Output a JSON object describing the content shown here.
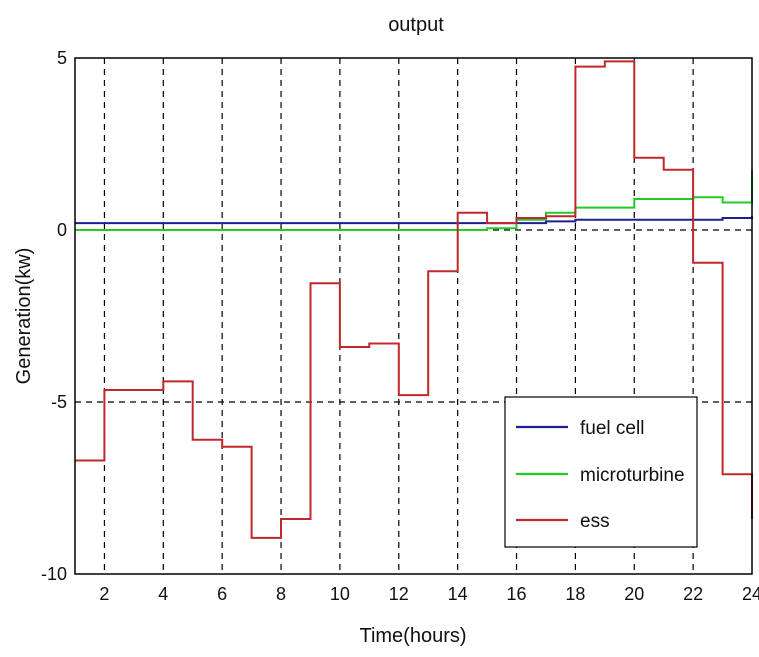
{
  "chart_data": {
    "type": "line",
    "title": "output",
    "xlabel": "Time(hours)",
    "ylabel": "Generation(kw)",
    "xlim": [
      1,
      24
    ],
    "ylim": [
      -10,
      5
    ],
    "xticks": [
      "2",
      "4",
      "6",
      "8",
      "10",
      "12",
      "14",
      "16",
      "18",
      "20",
      "22",
      "24"
    ],
    "yticks": [
      "-10",
      "-5",
      "0",
      "5"
    ],
    "grid": true,
    "legend_position": "bottom-right",
    "step": true,
    "series": [
      {
        "name": "fuel cell",
        "color": "#1f1f8f",
        "x": [
          1,
          2,
          3,
          4,
          5,
          6,
          7,
          8,
          9,
          10,
          11,
          12,
          13,
          14,
          15,
          16,
          17,
          18,
          19,
          20,
          21,
          22,
          23,
          24
        ],
        "y": [
          0.2,
          0.2,
          0.2,
          0.2,
          0.2,
          0.2,
          0.2,
          0.2,
          0.2,
          0.2,
          0.2,
          0.2,
          0.2,
          0.2,
          0.2,
          0.2,
          0.25,
          0.3,
          0.3,
          0.3,
          0.3,
          0.3,
          0.35,
          0.4
        ]
      },
      {
        "name": "microturbine",
        "color": "#22cc22",
        "x": [
          1,
          2,
          3,
          4,
          5,
          6,
          7,
          8,
          9,
          10,
          11,
          12,
          13,
          14,
          15,
          16,
          17,
          18,
          19,
          20,
          21,
          22,
          23,
          24
        ],
        "y": [
          0.0,
          0.0,
          0.0,
          0.0,
          0.0,
          0.0,
          0.0,
          0.0,
          0.0,
          0.0,
          0.0,
          0.0,
          0.0,
          0.0,
          0.05,
          0.3,
          0.5,
          0.65,
          0.65,
          0.9,
          0.9,
          0.95,
          0.8,
          1.75
        ]
      },
      {
        "name": "ess",
        "color": "#c0282d",
        "x": [
          1,
          2,
          3,
          4,
          5,
          6,
          7,
          8,
          9,
          10,
          11,
          12,
          13,
          14,
          15,
          16,
          17,
          18,
          19,
          20,
          21,
          22,
          23,
          24
        ],
        "y": [
          -6.7,
          -4.65,
          -4.65,
          -4.4,
          -6.1,
          -6.3,
          -8.95,
          -8.4,
          -1.55,
          -3.4,
          -3.3,
          -4.8,
          -1.2,
          0.5,
          0.2,
          0.35,
          0.4,
          4.75,
          4.9,
          2.1,
          1.75,
          -0.95,
          -7.1,
          -8.4
        ]
      }
    ]
  }
}
